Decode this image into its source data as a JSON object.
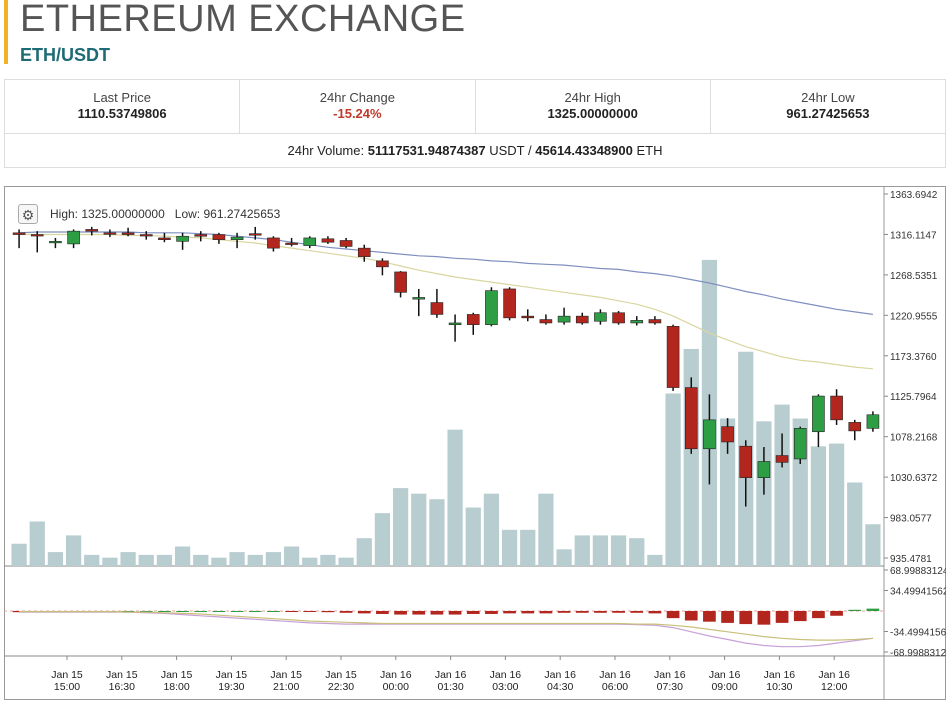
{
  "header": {
    "title": "ETHEREUM EXCHANGE",
    "pair": "ETH/USDT"
  },
  "stats": {
    "last_price_label": "Last Price",
    "last_price": "1110.53749806",
    "change_label": "24hr Change",
    "change": "-15.24%",
    "high_label": "24hr High",
    "high": "1325.00000000",
    "low_label": "24hr Low",
    "low": "961.27425653",
    "volume_label": "24hr Volume:",
    "volume_usdt": "51117531.94874387",
    "volume_usdt_unit": "USDT",
    "volume_sep": "/",
    "volume_eth": "45614.43348900",
    "volume_eth_unit": "ETH"
  },
  "chart_overlay": {
    "high_label": "High:",
    "high": "1325.00000000",
    "low_label": "Low:",
    "low": "961.27425653",
    "settings_icon": "gear-icon"
  },
  "colors": {
    "up": "#2e9e45",
    "down": "#b3261e",
    "volume": "#b8cdd0",
    "ma_slow": "#7f8fbf",
    "ma_fast": "#d9d6a0",
    "grid": "#cccccc",
    "accent": "#f0b323",
    "pair": "#1e6b76"
  },
  "chart_data": {
    "type": "candlestick",
    "price_axis_ticks": [
      "1363.6942",
      "1316.1147",
      "1268.5351",
      "1220.9555",
      "1173.3760",
      "1125.7964",
      "1078.2168",
      "1030.6372",
      "983.0577",
      "935.4781"
    ],
    "price_ylim": [
      935.4781,
      1363.6942
    ],
    "indicator_axis_ticks": [
      "68.99883124",
      "34.49941562",
      "-34.49941562",
      "-68.99883124"
    ],
    "indicator_ylim": [
      -68.99883124,
      68.99883124
    ],
    "x_ticks": [
      {
        "d": "Jan 15",
        "t": "15:00"
      },
      {
        "d": "Jan 15",
        "t": "16:30"
      },
      {
        "d": "Jan 15",
        "t": "18:00"
      },
      {
        "d": "Jan 15",
        "t": "19:30"
      },
      {
        "d": "Jan 15",
        "t": "21:00"
      },
      {
        "d": "Jan 15",
        "t": "22:30"
      },
      {
        "d": "Jan 16",
        "t": "00:00"
      },
      {
        "d": "Jan 16",
        "t": "01:30"
      },
      {
        "d": "Jan 16",
        "t": "03:00"
      },
      {
        "d": "Jan 16",
        "t": "04:30"
      },
      {
        "d": "Jan 16",
        "t": "06:00"
      },
      {
        "d": "Jan 16",
        "t": "07:30"
      },
      {
        "d": "Jan 16",
        "t": "09:00"
      },
      {
        "d": "Jan 16",
        "t": "10:30"
      },
      {
        "d": "Jan 16",
        "t": "12:00"
      }
    ],
    "candles": [
      {
        "o": 1318,
        "h": 1322,
        "l": 1300,
        "c": 1316
      },
      {
        "o": 1316,
        "h": 1320,
        "l": 1295,
        "c": 1315
      },
      {
        "o": 1307,
        "h": 1312,
        "l": 1300,
        "c": 1308
      },
      {
        "o": 1305,
        "h": 1322,
        "l": 1300,
        "c": 1320
      },
      {
        "o": 1322,
        "h": 1325,
        "l": 1315,
        "c": 1320
      },
      {
        "o": 1318,
        "h": 1322,
        "l": 1313,
        "c": 1317
      },
      {
        "o": 1318,
        "h": 1324,
        "l": 1314,
        "c": 1316
      },
      {
        "o": 1316,
        "h": 1320,
        "l": 1310,
        "c": 1315
      },
      {
        "o": 1312,
        "h": 1318,
        "l": 1307,
        "c": 1310
      },
      {
        "o": 1308,
        "h": 1318,
        "l": 1298,
        "c": 1314
      },
      {
        "o": 1316,
        "h": 1320,
        "l": 1308,
        "c": 1314
      },
      {
        "o": 1316,
        "h": 1318,
        "l": 1305,
        "c": 1310
      },
      {
        "o": 1310,
        "h": 1318,
        "l": 1300,
        "c": 1313
      },
      {
        "o": 1317,
        "h": 1325,
        "l": 1310,
        "c": 1316
      },
      {
        "o": 1312,
        "h": 1314,
        "l": 1296,
        "c": 1300
      },
      {
        "o": 1306,
        "h": 1312,
        "l": 1302,
        "c": 1305
      },
      {
        "o": 1303,
        "h": 1314,
        "l": 1300,
        "c": 1312
      },
      {
        "o": 1311,
        "h": 1314,
        "l": 1305,
        "c": 1307
      },
      {
        "o": 1309,
        "h": 1312,
        "l": 1300,
        "c": 1302
      },
      {
        "o": 1300,
        "h": 1304,
        "l": 1284,
        "c": 1290
      },
      {
        "o": 1285,
        "h": 1288,
        "l": 1268,
        "c": 1278
      },
      {
        "o": 1272,
        "h": 1273,
        "l": 1242,
        "c": 1248
      },
      {
        "o": 1240,
        "h": 1252,
        "l": 1220,
        "c": 1242
      },
      {
        "o": 1236,
        "h": 1252,
        "l": 1218,
        "c": 1222
      },
      {
        "o": 1210,
        "h": 1222,
        "l": 1190,
        "c": 1212
      },
      {
        "o": 1222,
        "h": 1224,
        "l": 1198,
        "c": 1210
      },
      {
        "o": 1210,
        "h": 1254,
        "l": 1208,
        "c": 1250
      },
      {
        "o": 1252,
        "h": 1254,
        "l": 1215,
        "c": 1218
      },
      {
        "o": 1220,
        "h": 1228,
        "l": 1214,
        "c": 1218
      },
      {
        "o": 1216,
        "h": 1222,
        "l": 1210,
        "c": 1212
      },
      {
        "o": 1213,
        "h": 1230,
        "l": 1210,
        "c": 1220
      },
      {
        "o": 1220,
        "h": 1224,
        "l": 1210,
        "c": 1212
      },
      {
        "o": 1214,
        "h": 1228,
        "l": 1210,
        "c": 1224
      },
      {
        "o": 1224,
        "h": 1226,
        "l": 1210,
        "c": 1212
      },
      {
        "o": 1212,
        "h": 1220,
        "l": 1209,
        "c": 1215
      },
      {
        "o": 1216,
        "h": 1220,
        "l": 1210,
        "c": 1212
      },
      {
        "o": 1208,
        "h": 1210,
        "l": 1132,
        "c": 1136
      },
      {
        "o": 1136,
        "h": 1148,
        "l": 1058,
        "c": 1064
      },
      {
        "o": 1064,
        "h": 1128,
        "l": 1022,
        "c": 1098
      },
      {
        "o": 1090,
        "h": 1100,
        "l": 1058,
        "c": 1072
      },
      {
        "o": 1067,
        "h": 1074,
        "l": 996,
        "c": 1030
      },
      {
        "o": 1030,
        "h": 1066,
        "l": 1010,
        "c": 1049
      },
      {
        "o": 1056,
        "h": 1082,
        "l": 1042,
        "c": 1048
      },
      {
        "o": 1052,
        "h": 1090,
        "l": 1046,
        "c": 1088
      },
      {
        "o": 1084,
        "h": 1128,
        "l": 1066,
        "c": 1126
      },
      {
        "o": 1126,
        "h": 1134,
        "l": 1092,
        "c": 1098
      },
      {
        "o": 1095,
        "h": 1098,
        "l": 1074,
        "c": 1085
      },
      {
        "o": 1088,
        "h": 1108,
        "l": 1084,
        "c": 1104
      }
    ],
    "volume": [
      8,
      16,
      5,
      11,
      4,
      3,
      5,
      4,
      4,
      7,
      4,
      3,
      5,
      4,
      5,
      7,
      3,
      4,
      3,
      10,
      19,
      28,
      26,
      24,
      49,
      21,
      26,
      13,
      13,
      26,
      6,
      11,
      11,
      11,
      10,
      4,
      62,
      78,
      110,
      53,
      77,
      52,
      58,
      53,
      43,
      44,
      30,
      15
    ],
    "ma_slow": [
      1318,
      1319,
      1319,
      1319,
      1319,
      1319,
      1319,
      1318,
      1318,
      1318,
      1317,
      1316,
      1314,
      1312,
      1310,
      1307,
      1304,
      1301,
      1299,
      1297,
      1295,
      1293,
      1291,
      1290,
      1288,
      1287,
      1285,
      1284,
      1282,
      1281,
      1280,
      1278,
      1276,
      1275,
      1272,
      1270,
      1267,
      1263,
      1259,
      1254,
      1249,
      1245,
      1240,
      1236,
      1232,
      1228,
      1225,
      1222
    ],
    "ma_fast": [
      1316,
      1316,
      1316,
      1316,
      1316,
      1316,
      1315,
      1315,
      1314,
      1313,
      1312,
      1310,
      1308,
      1306,
      1303,
      1300,
      1297,
      1294,
      1291,
      1288,
      1284,
      1279,
      1274,
      1270,
      1266,
      1263,
      1260,
      1257,
      1254,
      1251,
      1248,
      1245,
      1242,
      1238,
      1234,
      1228,
      1220,
      1210,
      1200,
      1192,
      1184,
      1178,
      1172,
      1168,
      1166,
      1163,
      1160,
      1158
    ],
    "macd_hist": [
      -2,
      -2,
      -2,
      -1,
      -1,
      0,
      0,
      0,
      0,
      0,
      0,
      0,
      0,
      0,
      0,
      -1,
      -1,
      -2,
      -3,
      -4,
      -5,
      -6,
      -6,
      -6,
      -6,
      -5,
      -5,
      -4,
      -4,
      -4,
      -3,
      -3,
      -3,
      -3,
      -3,
      -4,
      -12,
      -16,
      -18,
      -20,
      -22,
      -23,
      -20,
      -17,
      -12,
      -8,
      2,
      4
    ],
    "macd_line": [
      -2,
      -2,
      -2,
      -2,
      -2,
      -2,
      -2,
      -3,
      -4,
      -6,
      -8,
      -10,
      -12,
      -14,
      -16,
      -18,
      -20,
      -21,
      -22,
      -22,
      -22,
      -22,
      -22,
      -22,
      -22,
      -22,
      -22,
      -22,
      -22,
      -22,
      -22,
      -22,
      -22,
      -22,
      -23,
      -24,
      -28,
      -35,
      -42,
      -48,
      -54,
      -58,
      -60,
      -60,
      -58,
      -54,
      -50,
      -46
    ],
    "signal_line": [
      -1,
      -1,
      -1,
      -1,
      -1,
      -1,
      -2,
      -2,
      -3,
      -4,
      -5,
      -7,
      -9,
      -11,
      -13,
      -15,
      -17,
      -18,
      -19,
      -20,
      -21,
      -21,
      -21,
      -21,
      -21,
      -21,
      -21,
      -21,
      -21,
      -21,
      -21,
      -21,
      -21,
      -21,
      -22,
      -22,
      -24,
      -27,
      -31,
      -35,
      -39,
      -43,
      -46,
      -48,
      -49,
      -49,
      -48,
      -46
    ]
  }
}
